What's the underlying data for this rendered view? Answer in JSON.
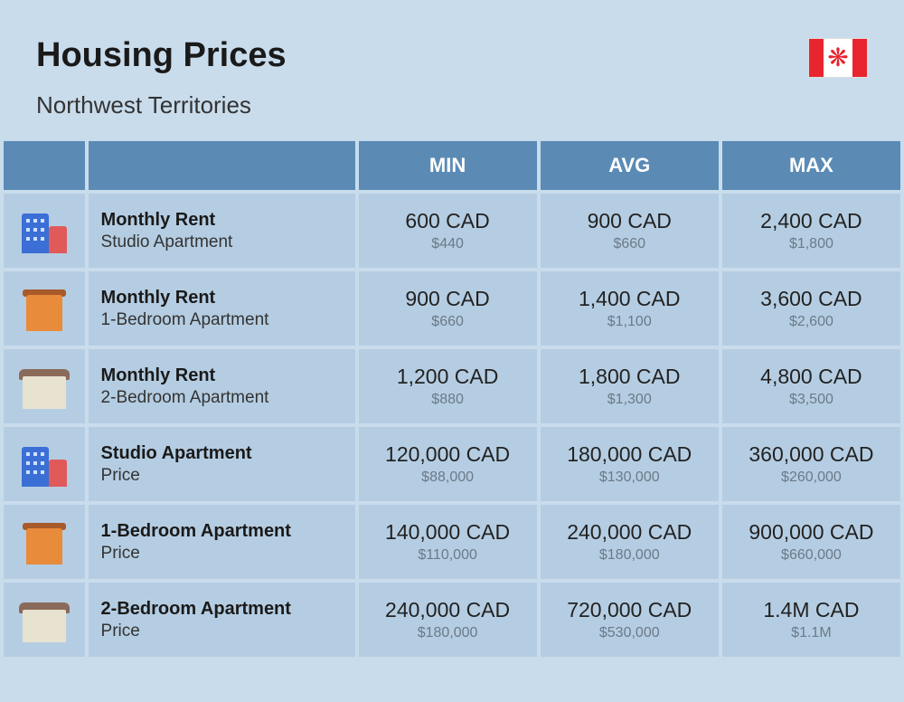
{
  "header": {
    "title": "Housing Prices",
    "subtitle": "Northwest Territories"
  },
  "flag": {
    "country": "Canada",
    "bar_color": "#e8252f",
    "leaf_glyph": "✦"
  },
  "columns": [
    "MIN",
    "AVG",
    "MAX"
  ],
  "rows": [
    {
      "icon": "buildings-blue-red",
      "title": "Monthly Rent",
      "subtitle": "Studio Apartment",
      "min": {
        "main": "600 CAD",
        "sub": "$440"
      },
      "avg": {
        "main": "900 CAD",
        "sub": "$660"
      },
      "max": {
        "main": "2,400 CAD",
        "sub": "$1,800"
      }
    },
    {
      "icon": "building-orange",
      "title": "Monthly Rent",
      "subtitle": "1-Bedroom Apartment",
      "min": {
        "main": "900 CAD",
        "sub": "$660"
      },
      "avg": {
        "main": "1,400 CAD",
        "sub": "$1,100"
      },
      "max": {
        "main": "3,600 CAD",
        "sub": "$2,600"
      }
    },
    {
      "icon": "house-beige",
      "title": "Monthly Rent",
      "subtitle": "2-Bedroom Apartment",
      "min": {
        "main": "1,200 CAD",
        "sub": "$880"
      },
      "avg": {
        "main": "1,800 CAD",
        "sub": "$1,300"
      },
      "max": {
        "main": "4,800 CAD",
        "sub": "$3,500"
      }
    },
    {
      "icon": "buildings-blue-red",
      "title": "Studio Apartment",
      "subtitle": "Price",
      "min": {
        "main": "120,000 CAD",
        "sub": "$88,000"
      },
      "avg": {
        "main": "180,000 CAD",
        "sub": "$130,000"
      },
      "max": {
        "main": "360,000 CAD",
        "sub": "$260,000"
      }
    },
    {
      "icon": "building-orange",
      "title": "1-Bedroom Apartment",
      "subtitle": "Price",
      "min": {
        "main": "140,000 CAD",
        "sub": "$110,000"
      },
      "avg": {
        "main": "240,000 CAD",
        "sub": "$180,000"
      },
      "max": {
        "main": "900,000 CAD",
        "sub": "$660,000"
      }
    },
    {
      "icon": "house-beige",
      "title": "2-Bedroom Apartment",
      "subtitle": "Price",
      "min": {
        "main": "240,000 CAD",
        "sub": "$180,000"
      },
      "avg": {
        "main": "720,000 CAD",
        "sub": "$530,000"
      },
      "max": {
        "main": "1.4M CAD",
        "sub": "$1.1M"
      }
    }
  ],
  "colors": {
    "page_bg": "#c9dcec",
    "header_bg": "#5b8bb5",
    "cell_bg": "#b5cde2",
    "text_dark": "#1a1a1a",
    "text_sub": "#6a7a88"
  }
}
